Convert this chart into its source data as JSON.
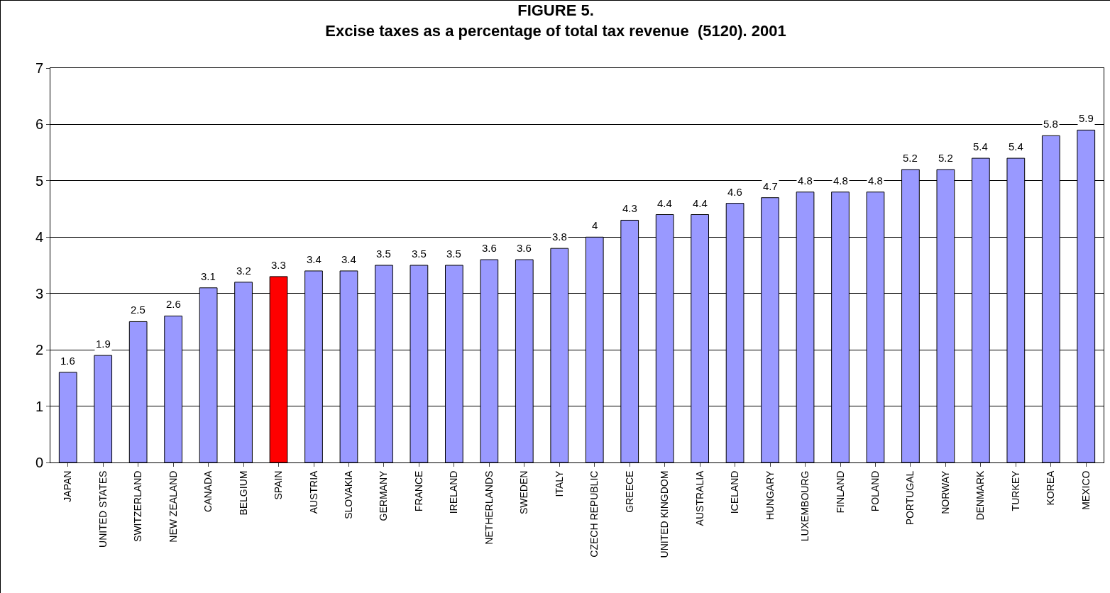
{
  "chart_data": {
    "type": "bar",
    "title": "FIGURE 5.\nExcise taxes as a percentage of total tax revenue  (5120). 2001",
    "categories": [
      "JAPAN",
      "UNITED STATES",
      "SWITZERLAND",
      "NEW ZEALAND",
      "CANADA",
      "BELGIUM",
      "SPAIN",
      "AUSTRIA",
      "SLOVAKIA",
      "GERMANY",
      "FRANCE",
      "IRELAND",
      "NETHERLANDS",
      "SWEDEN",
      "ITALY",
      "CZECH REPUBLIC",
      "GREECE",
      "UNITED KINGDOM",
      "AUSTRALIA",
      "ICELAND",
      "HUNGARY",
      "LUXEMBOURG",
      "FINLAND",
      "POLAND",
      "PORTUGAL",
      "NORWAY",
      "DENMARK",
      "TURKEY",
      "KOREA",
      "MEXICO"
    ],
    "values": [
      1.6,
      1.9,
      2.5,
      2.6,
      3.1,
      3.2,
      3.3,
      3.4,
      3.4,
      3.5,
      3.5,
      3.5,
      3.6,
      3.6,
      3.8,
      4,
      4.3,
      4.4,
      4.4,
      4.6,
      4.7,
      4.8,
      4.8,
      4.8,
      5.2,
      5.2,
      5.4,
      5.4,
      5.8,
      5.9
    ],
    "colors": [
      "#9999ff",
      "#9999ff",
      "#9999ff",
      "#9999ff",
      "#9999ff",
      "#9999ff",
      "#ff0000",
      "#9999ff",
      "#9999ff",
      "#9999ff",
      "#9999ff",
      "#9999ff",
      "#9999ff",
      "#9999ff",
      "#9999ff",
      "#9999ff",
      "#9999ff",
      "#9999ff",
      "#9999ff",
      "#9999ff",
      "#9999ff",
      "#9999ff",
      "#9999ff",
      "#9999ff",
      "#9999ff",
      "#9999ff",
      "#9999ff",
      "#9999ff",
      "#9999ff",
      "#9999ff"
    ],
    "data_labels": true,
    "ylim": [
      0,
      7
    ],
    "yticks": [
      0,
      1,
      2,
      3,
      4,
      5,
      6,
      7
    ],
    "grid": "y",
    "legend": false
  }
}
